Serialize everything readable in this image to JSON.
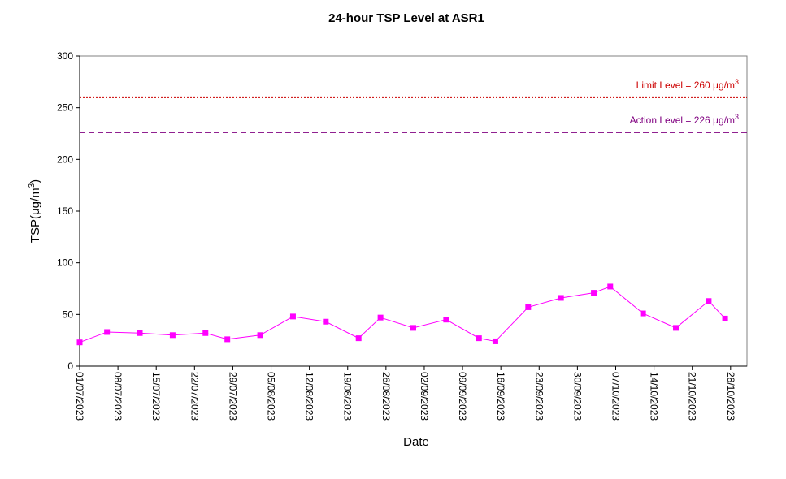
{
  "chart_data": {
    "type": "line",
    "title": "24-hour TSP Level at ASR1",
    "xlabel": "Date",
    "ylabel": "TSP(μg/m",
    "ylabel_sup": "3",
    "ylabel_close": ")",
    "ylim": [
      0,
      300
    ],
    "yticks": [
      "0",
      "50",
      "100",
      "150",
      "200",
      "250",
      "300"
    ],
    "ytick_values": [
      0,
      50,
      100,
      150,
      200,
      250,
      300
    ],
    "xlim": [
      "01/07/2023",
      "31/10/2023"
    ],
    "xticks": [
      "01/07/2023",
      "08/07/2023",
      "15/07/2023",
      "22/07/2023",
      "29/07/2023",
      "05/08/2023",
      "12/08/2023",
      "19/08/2023",
      "26/08/2023",
      "02/09/2023",
      "09/09/2023",
      "16/09/2023",
      "23/09/2023",
      "30/09/2023",
      "07/10/2023",
      "14/10/2023",
      "21/10/2023",
      "28/10/2023"
    ],
    "grid": false,
    "series": [
      {
        "name": "",
        "color": "#ff00ff",
        "marker": "square",
        "x": [
          "01/07/2023",
          "06/07/2023",
          "12/07/2023",
          "18/07/2023",
          "24/07/2023",
          "28/07/2023",
          "03/08/2023",
          "09/08/2023",
          "15/08/2023",
          "21/08/2023",
          "25/08/2023",
          "31/08/2023",
          "06/09/2023",
          "12/09/2023",
          "15/09/2023",
          "21/09/2023",
          "27/09/2023",
          "03/10/2023",
          "06/10/2023",
          "12/10/2023",
          "18/10/2023",
          "24/10/2023",
          "27/10/2023"
        ],
        "values": [
          23,
          33,
          32,
          30,
          32,
          26,
          30,
          48,
          43,
          27,
          47,
          37,
          45,
          27,
          24,
          57,
          66,
          71,
          77,
          51,
          37,
          63,
          46
        ]
      }
    ],
    "reference_lines": [
      {
        "label": "Limit Level  = 260 ",
        "unit": "μg/m",
        "sup": "3",
        "value": 260,
        "color": "#cc0000",
        "style": "dotted"
      },
      {
        "label": "Action Level  = 226 ",
        "unit": "μg/m",
        "sup": "3",
        "value": 226,
        "color": "#800080",
        "style": "dashed"
      }
    ]
  }
}
